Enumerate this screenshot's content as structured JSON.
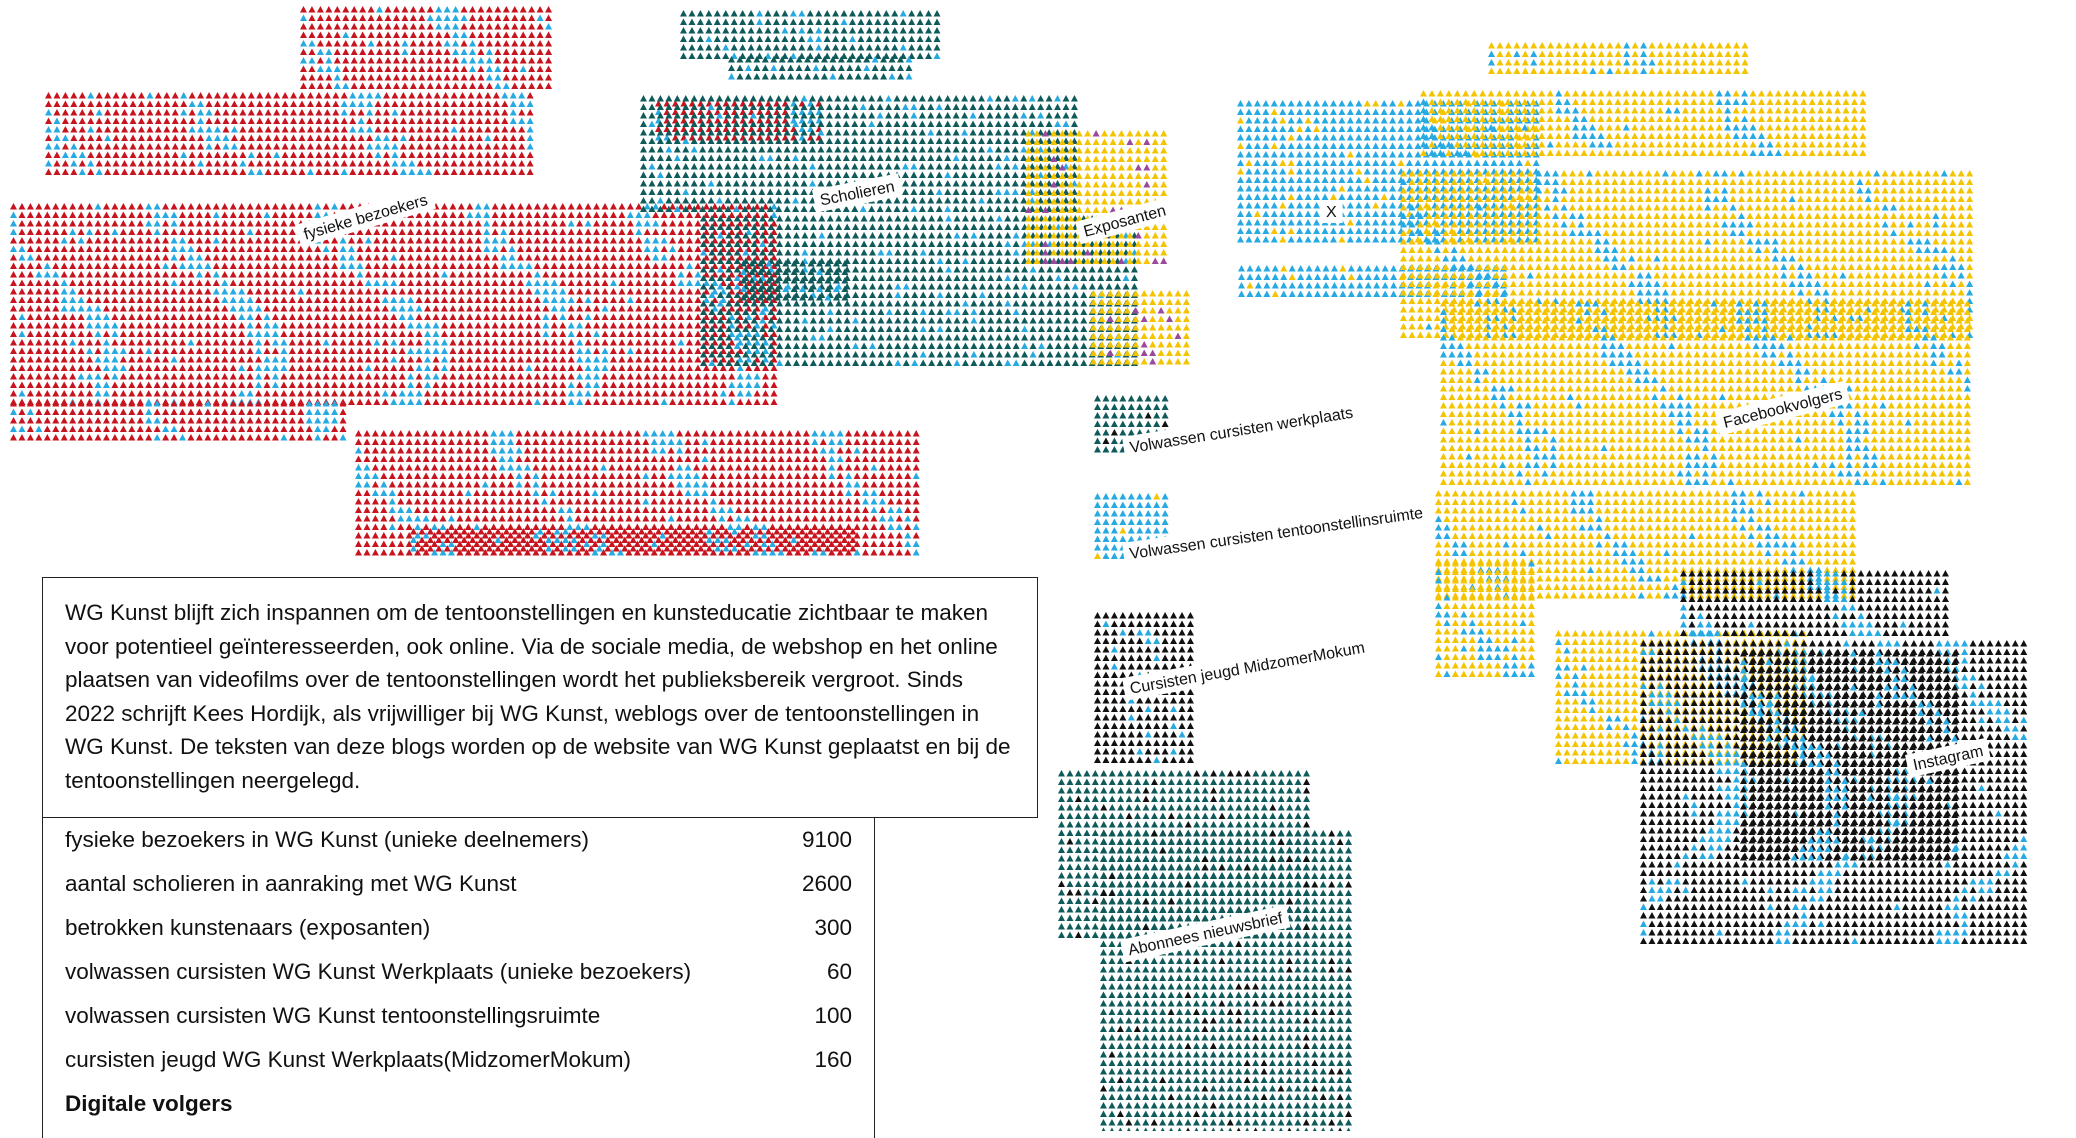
{
  "intro_text": "WG Kunst blijft zich inspannen om de tentoonstellingen en kunsteducatie zichtbaar te maken voor potentieel geïnteresseerden, ook online. Via de sociale media, de webshop en het online plaatsen van videofilms over de tentoonstellingen wordt het publieksbereik vergroot. Sinds 2022 schrijft Kees Hordijk, als vrijwilliger bij WG Kunst, weblogs over de tentoonstellingen in WG Kunst. De teksten van deze blogs worden op de website van WG Kunst geplaatst en bij de tentoonstellingen neergelegd.",
  "stats": [
    {
      "label": "fysieke bezoekers in WG Kunst (unieke deelnemers)",
      "value": "9100"
    },
    {
      "label": "aantal scholieren in aanraking met WG Kunst",
      "value": "2600"
    },
    {
      "label": "betrokken kunstenaars (exposanten)",
      "value": "300"
    },
    {
      "label": "volwassen cursisten WG Kunst Werkplaats (unieke bezoekers)",
      "value": "60"
    },
    {
      "label": "volwassen cursisten WG Kunst tentoonstellingsruimte",
      "value": "100"
    },
    {
      "label": "cursisten jeugd WG Kunst Werkplaats(MidzomerMokum)",
      "value": "160"
    }
  ],
  "digital_heading": "Digitale volgers",
  "chart_data": {
    "type": "pictogram",
    "unit": "triangle marks",
    "groups": [
      {
        "name": "fysieke bezoekers",
        "value": 9100,
        "color": "#c8141e",
        "accent": "#27aae1"
      },
      {
        "name": "Scholieren",
        "value": 2600,
        "color": "#0f5b5c",
        "accent": "#27aae1"
      },
      {
        "name": "Exposanten",
        "value": 300,
        "color": "#f5c400",
        "accent": "#9b4a9b"
      },
      {
        "name": "Volwassen cursisten werkplaats",
        "value": 60,
        "color": "#0f5b5c",
        "accent": "#111111"
      },
      {
        "name": "Volwassen cursisten tentoonstellinsruimte",
        "value": 100,
        "color": "#27aae1",
        "accent": "#f5c400"
      },
      {
        "name": "Cursisten jeugd MidzomerMokum",
        "value": 160,
        "color": "#111111",
        "accent": "#27aae1"
      },
      {
        "name": "Abonnees nieuwsbrief",
        "value": null,
        "color": "#0f5b5c",
        "accent": "#111111"
      },
      {
        "name": "X",
        "value": null,
        "color": "#27aae1",
        "accent": "#f5c400"
      },
      {
        "name": "Facebookvolgers",
        "value": null,
        "color": "#f5c400",
        "accent": "#27aae1"
      },
      {
        "name": "Instagram",
        "value": null,
        "color": "#111111",
        "accent": "#27aae1"
      }
    ]
  }
}
